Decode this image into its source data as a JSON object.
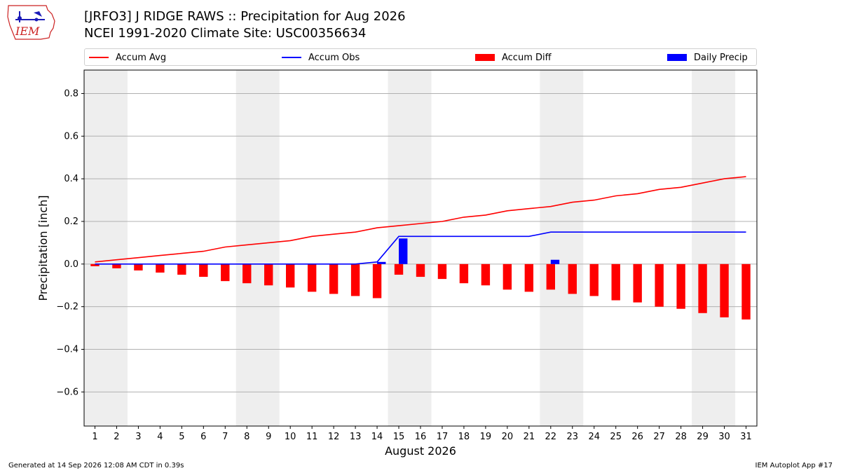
{
  "header": {
    "title_line1": "[JRFO3] J RIDGE RAWS :: Precipitation for Aug 2026",
    "title_line2": "NCEI 1991-2020 Climate Site: USC00356634",
    "logo_text": "IEM"
  },
  "legend": {
    "accum_avg": "Accum Avg",
    "accum_obs": "Accum Obs",
    "accum_diff": "Accum Diff",
    "daily_precip": "Daily Precip"
  },
  "colors": {
    "accum_avg": "#ff0000",
    "accum_obs": "#0000ff",
    "accum_diff": "#ff0000",
    "daily_precip": "#0000ff",
    "weekend_shade": "#eeeeee",
    "grid": "#b0b0b0"
  },
  "chart_data": {
    "type": "bar",
    "title": "[JRFO3] J RIDGE RAWS :: Precipitation for Aug 2026",
    "subtitle": "NCEI 1991-2020 Climate Site: USC00356634",
    "xlabel": "August 2026",
    "ylabel": "Precipitation [inch]",
    "x": [
      1,
      2,
      3,
      4,
      5,
      6,
      7,
      8,
      9,
      10,
      11,
      12,
      13,
      14,
      15,
      16,
      17,
      18,
      19,
      20,
      21,
      22,
      23,
      24,
      25,
      26,
      27,
      28,
      29,
      30,
      31
    ],
    "xlim": [
      0.5,
      31.5
    ],
    "ylim": [
      -0.76,
      0.91
    ],
    "yticks": [
      -0.6,
      -0.4,
      -0.2,
      0.0,
      0.2,
      0.4,
      0.6,
      0.8
    ],
    "ytick_labels": [
      "−0.6",
      "−0.4",
      "−0.2",
      "0.0",
      "0.2",
      "0.4",
      "0.6",
      "0.8"
    ],
    "grid": "horizontal",
    "legend_position": "top",
    "shaded_weekend_days": [
      [
        1,
        2
      ],
      [
        8,
        9
      ],
      [
        15,
        16
      ],
      [
        22,
        23
      ],
      [
        29,
        30
      ]
    ],
    "series": [
      {
        "name": "Accum Avg",
        "kind": "line",
        "values": [
          0.01,
          0.02,
          0.03,
          0.04,
          0.05,
          0.06,
          0.08,
          0.09,
          0.1,
          0.11,
          0.13,
          0.14,
          0.15,
          0.17,
          0.18,
          0.19,
          0.2,
          0.22,
          0.23,
          0.25,
          0.26,
          0.27,
          0.29,
          0.3,
          0.32,
          0.33,
          0.35,
          0.36,
          0.38,
          0.4,
          0.41
        ]
      },
      {
        "name": "Accum Obs",
        "kind": "line",
        "values": [
          0,
          0,
          0,
          0,
          0,
          0,
          0,
          0,
          0,
          0,
          0,
          0,
          0,
          0.01,
          0.13,
          0.13,
          0.13,
          0.13,
          0.13,
          0.13,
          0.13,
          0.15,
          0.15,
          0.15,
          0.15,
          0.15,
          0.15,
          0.15,
          0.15,
          0.15,
          0.15
        ]
      },
      {
        "name": "Accum Diff",
        "kind": "bar",
        "values": [
          -0.01,
          -0.02,
          -0.03,
          -0.04,
          -0.05,
          -0.06,
          -0.08,
          -0.09,
          -0.1,
          -0.11,
          -0.13,
          -0.14,
          -0.15,
          -0.16,
          -0.05,
          -0.06,
          -0.07,
          -0.09,
          -0.1,
          -0.12,
          -0.13,
          -0.12,
          -0.14,
          -0.15,
          -0.17,
          -0.18,
          -0.2,
          -0.21,
          -0.23,
          -0.25,
          -0.26
        ]
      },
      {
        "name": "Daily Precip",
        "kind": "bar",
        "values": [
          0,
          0,
          0,
          0,
          0,
          0,
          0,
          0,
          0,
          0,
          0,
          0,
          0,
          0.01,
          0.12,
          0,
          0,
          0,
          0,
          0,
          0,
          0.02,
          0,
          0,
          0,
          0,
          0,
          0,
          0,
          0,
          0
        ]
      }
    ]
  },
  "footer": {
    "left": "Generated at 14 Sep 2026 12:08 AM CDT in 0.39s",
    "right": "IEM Autoplot App #17"
  }
}
